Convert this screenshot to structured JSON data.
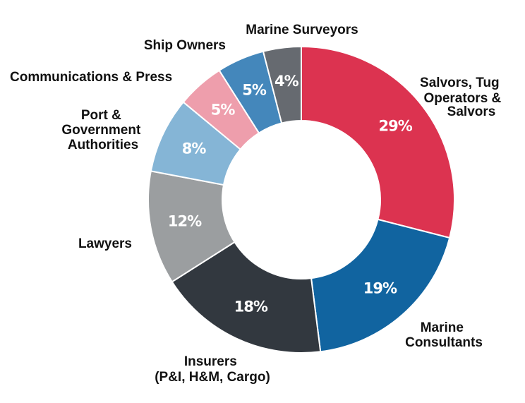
{
  "chart_data": {
    "type": "pie",
    "title": "",
    "categories": [
      "Salvors, Tug Operators & Salvors",
      "Marine Consultants",
      "Insurers (P&I, H&M, Cargo)",
      "Lawyers",
      "Port & Government Authorities",
      "Communications & Press",
      "Ship Owners",
      "Marine Surveyors"
    ],
    "values": [
      29,
      19,
      18,
      12,
      8,
      5,
      5,
      4
    ],
    "labels": [
      "29%",
      "19%",
      "18%",
      "12%",
      "8%",
      "5%",
      "5%",
      "4%"
    ],
    "colors": [
      "#dc3350",
      "#1164a0",
      "#32383f",
      "#9b9ea0",
      "#85b5d6",
      "#ee9eac",
      "#4487bb",
      "#666a70"
    ],
    "legend": "none"
  }
}
